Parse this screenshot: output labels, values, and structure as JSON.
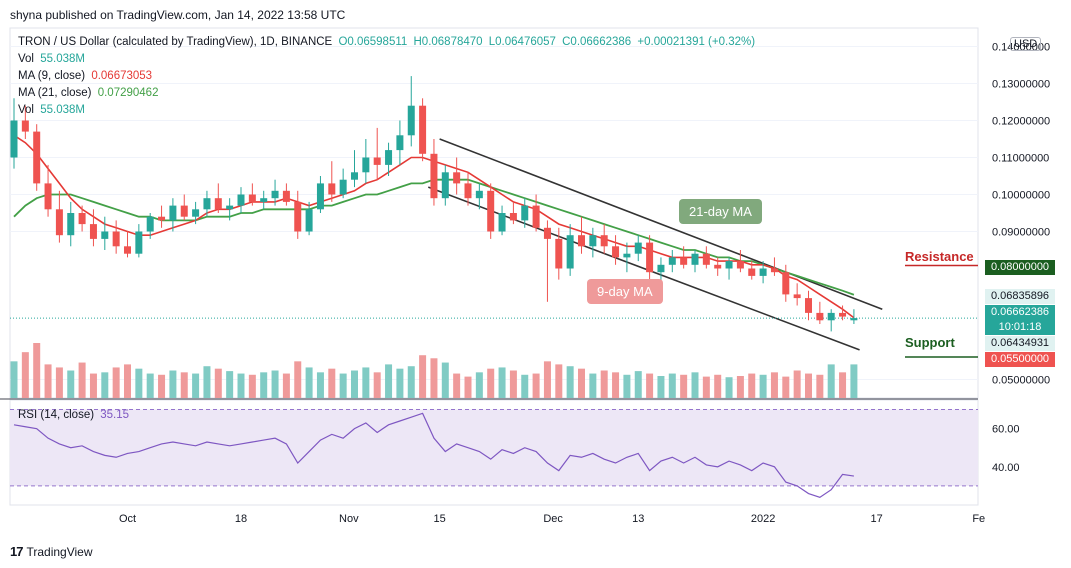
{
  "header": {
    "text": "shyna published on TradingView.com, Jan 14, 2022 13:58 UTC"
  },
  "legend": {
    "title": "TRON / US Dollar (calculated by TradingView), 1D, BINANCE",
    "open": "O0.06598511",
    "high": "H0.06878470",
    "low": "L0.06476057",
    "close": "C0.06662386",
    "change": "+0.00021391 (+0.32%)",
    "vol_label": "Vol",
    "vol_value": "55.038M",
    "ma9_label": "MA (9, close)",
    "ma9_value": "0.06673053",
    "ma21_label": "MA (21, close)",
    "ma21_value": "0.07290462",
    "vol2_label": "Vol",
    "vol2_value": "55.038M",
    "rsi_label": "RSI (14, close)",
    "rsi_value": "35.15"
  },
  "currency_button": "USD",
  "price_axis_ticks": [
    "0.14000000",
    "0.13000000",
    "0.12000000",
    "0.11000000",
    "0.10000000",
    "0.09000000",
    "0.05000000"
  ],
  "rsi_axis_ticks": [
    "60.00",
    "40.00"
  ],
  "price_tags": {
    "resistance": "0.08000000",
    "high_tag": "0.06835896",
    "close_tag": "0.06662386",
    "countdown": "10:01:18",
    "low_tag": "0.06434931",
    "support": "0.05500000"
  },
  "annotations": {
    "resistance_label": "Resistance",
    "support_label": "Support",
    "ma21_bubble": "21-day MA",
    "ma9_bubble": "9-day MA"
  },
  "x_axis_ticks": [
    "Oct",
    "18",
    "Nov",
    "15",
    "Dec",
    "13",
    "2022",
    "17",
    "Fe"
  ],
  "footer": {
    "brand": "TradingView"
  },
  "colors": {
    "up": "#26a69a",
    "down": "#ef5350",
    "ma9": "#e53935",
    "ma21": "#43a047",
    "rsi_line": "#7e57c2",
    "rsi_band": "#ede7f6",
    "resistance": "#c62828",
    "support": "#1b5e20",
    "ma21_bubble": "#81a97d",
    "ma9_bubble": "#ef9a9a"
  },
  "chart_data": {
    "type": "candlestick",
    "series": [
      {
        "name": "TRON / US Dollar",
        "ohlc": [
          [
            0.11,
            0.126,
            0.107,
            0.12
          ],
          [
            0.12,
            0.124,
            0.115,
            0.117
          ],
          [
            0.117,
            0.119,
            0.101,
            0.103
          ],
          [
            0.103,
            0.108,
            0.094,
            0.096
          ],
          [
            0.096,
            0.101,
            0.087,
            0.089
          ],
          [
            0.089,
            0.098,
            0.086,
            0.095
          ],
          [
            0.095,
            0.097,
            0.09,
            0.092
          ],
          [
            0.092,
            0.096,
            0.086,
            0.088
          ],
          [
            0.088,
            0.094,
            0.085,
            0.09
          ],
          [
            0.09,
            0.093,
            0.084,
            0.086
          ],
          [
            0.086,
            0.09,
            0.083,
            0.084
          ],
          [
            0.084,
            0.092,
            0.083,
            0.09
          ],
          [
            0.09,
            0.095,
            0.088,
            0.094
          ],
          [
            0.094,
            0.097,
            0.091,
            0.093
          ],
          [
            0.093,
            0.099,
            0.09,
            0.097
          ],
          [
            0.097,
            0.1,
            0.093,
            0.094
          ],
          [
            0.094,
            0.098,
            0.092,
            0.096
          ],
          [
            0.096,
            0.101,
            0.094,
            0.099
          ],
          [
            0.099,
            0.103,
            0.095,
            0.096
          ],
          [
            0.096,
            0.099,
            0.093,
            0.097
          ],
          [
            0.097,
            0.102,
            0.095,
            0.1
          ],
          [
            0.1,
            0.103,
            0.097,
            0.098
          ],
          [
            0.098,
            0.101,
            0.096,
            0.099
          ],
          [
            0.099,
            0.104,
            0.097,
            0.101
          ],
          [
            0.101,
            0.103,
            0.097,
            0.098
          ],
          [
            0.098,
            0.101,
            0.088,
            0.09
          ],
          [
            0.09,
            0.098,
            0.089,
            0.096
          ],
          [
            0.096,
            0.105,
            0.095,
            0.103
          ],
          [
            0.103,
            0.109,
            0.098,
            0.1
          ],
          [
            0.1,
            0.107,
            0.099,
            0.104
          ],
          [
            0.104,
            0.112,
            0.102,
            0.106
          ],
          [
            0.106,
            0.115,
            0.103,
            0.11
          ],
          [
            0.11,
            0.118,
            0.104,
            0.108
          ],
          [
            0.108,
            0.114,
            0.105,
            0.112
          ],
          [
            0.112,
            0.12,
            0.108,
            0.116
          ],
          [
            0.116,
            0.132,
            0.113,
            0.124
          ],
          [
            0.124,
            0.126,
            0.109,
            0.111
          ],
          [
            0.111,
            0.115,
            0.097,
            0.099
          ],
          [
            0.099,
            0.108,
            0.097,
            0.106
          ],
          [
            0.106,
            0.11,
            0.1,
            0.103
          ],
          [
            0.103,
            0.106,
            0.097,
            0.099
          ],
          [
            0.099,
            0.103,
            0.096,
            0.101
          ],
          [
            0.101,
            0.103,
            0.088,
            0.09
          ],
          [
            0.09,
            0.097,
            0.089,
            0.095
          ],
          [
            0.095,
            0.098,
            0.092,
            0.093
          ],
          [
            0.093,
            0.099,
            0.091,
            0.097
          ],
          [
            0.097,
            0.1,
            0.09,
            0.091
          ],
          [
            0.091,
            0.093,
            0.071,
            0.088
          ],
          [
            0.088,
            0.091,
            0.077,
            0.08
          ],
          [
            0.08,
            0.092,
            0.078,
            0.089
          ],
          [
            0.089,
            0.094,
            0.084,
            0.086
          ],
          [
            0.086,
            0.091,
            0.083,
            0.089
          ],
          [
            0.089,
            0.092,
            0.084,
            0.086
          ],
          [
            0.086,
            0.089,
            0.081,
            0.083
          ],
          [
            0.083,
            0.087,
            0.079,
            0.084
          ],
          [
            0.084,
            0.089,
            0.082,
            0.087
          ],
          [
            0.087,
            0.089,
            0.077,
            0.079
          ],
          [
            0.079,
            0.083,
            0.076,
            0.081
          ],
          [
            0.081,
            0.085,
            0.079,
            0.083
          ],
          [
            0.083,
            0.086,
            0.08,
            0.081
          ],
          [
            0.081,
            0.085,
            0.079,
            0.084
          ],
          [
            0.084,
            0.086,
            0.08,
            0.081
          ],
          [
            0.081,
            0.083,
            0.078,
            0.08
          ],
          [
            0.08,
            0.083,
            0.077,
            0.082
          ],
          [
            0.082,
            0.085,
            0.079,
            0.08
          ],
          [
            0.08,
            0.082,
            0.077,
            0.078
          ],
          [
            0.078,
            0.082,
            0.076,
            0.08
          ],
          [
            0.08,
            0.083,
            0.078,
            0.079
          ],
          [
            0.079,
            0.081,
            0.071,
            0.073
          ],
          [
            0.073,
            0.076,
            0.07,
            0.072
          ],
          [
            0.072,
            0.074,
            0.066,
            0.068
          ],
          [
            0.068,
            0.071,
            0.065,
            0.066
          ],
          [
            0.066,
            0.069,
            0.063,
            0.068
          ],
          [
            0.068,
            0.07,
            0.066,
            0.067
          ],
          [
            0.066,
            0.069,
            0.065,
            0.0666
          ]
        ]
      }
    ],
    "ma9": [
      0.116,
      0.114,
      0.111,
      0.107,
      0.103,
      0.099,
      0.096,
      0.094,
      0.092,
      0.091,
      0.09,
      0.089,
      0.089,
      0.09,
      0.091,
      0.092,
      0.093,
      0.095,
      0.096,
      0.096,
      0.097,
      0.098,
      0.098,
      0.098,
      0.099,
      0.098,
      0.097,
      0.098,
      0.099,
      0.1,
      0.101,
      0.103,
      0.104,
      0.106,
      0.108,
      0.11,
      0.11,
      0.109,
      0.108,
      0.107,
      0.106,
      0.104,
      0.102,
      0.1,
      0.098,
      0.097,
      0.096,
      0.094,
      0.092,
      0.091,
      0.09,
      0.089,
      0.088,
      0.087,
      0.086,
      0.086,
      0.085,
      0.084,
      0.083,
      0.083,
      0.083,
      0.083,
      0.082,
      0.082,
      0.082,
      0.081,
      0.081,
      0.08,
      0.078,
      0.077,
      0.075,
      0.073,
      0.071,
      0.069,
      0.0667
    ],
    "ma21": [
      0.094,
      0.097,
      0.099,
      0.1,
      0.1,
      0.1,
      0.099,
      0.098,
      0.097,
      0.096,
      0.095,
      0.094,
      0.094,
      0.093,
      0.093,
      0.093,
      0.093,
      0.094,
      0.094,
      0.094,
      0.095,
      0.095,
      0.096,
      0.096,
      0.096,
      0.096,
      0.096,
      0.097,
      0.097,
      0.098,
      0.099,
      0.1,
      0.1,
      0.101,
      0.102,
      0.103,
      0.103,
      0.104,
      0.104,
      0.104,
      0.104,
      0.103,
      0.102,
      0.101,
      0.1,
      0.099,
      0.098,
      0.097,
      0.096,
      0.095,
      0.094,
      0.093,
      0.092,
      0.091,
      0.09,
      0.089,
      0.088,
      0.087,
      0.086,
      0.085,
      0.085,
      0.084,
      0.083,
      0.083,
      0.082,
      0.082,
      0.081,
      0.08,
      0.079,
      0.078,
      0.077,
      0.076,
      0.075,
      0.074,
      0.0729
    ],
    "volume_m": [
      60,
      75,
      90,
      55,
      50,
      45,
      58,
      40,
      42,
      50,
      55,
      48,
      40,
      38,
      45,
      42,
      40,
      52,
      48,
      44,
      40,
      38,
      42,
      45,
      40,
      60,
      50,
      42,
      48,
      40,
      45,
      50,
      42,
      55,
      48,
      52,
      70,
      65,
      58,
      40,
      35,
      42,
      48,
      50,
      45,
      38,
      40,
      60,
      55,
      52,
      48,
      40,
      45,
      42,
      38,
      44,
      40,
      36,
      40,
      38,
      42,
      35,
      38,
      34,
      36,
      40,
      38,
      42,
      35,
      45,
      40,
      38,
      55,
      42,
      55
    ],
    "rsi": [
      62,
      61,
      60,
      55,
      52,
      50,
      51,
      48,
      46,
      45,
      47,
      48,
      50,
      52,
      53,
      52,
      51,
      53,
      52,
      51,
      52,
      53,
      54,
      55,
      52,
      42,
      48,
      54,
      57,
      55,
      60,
      63,
      58,
      62,
      64,
      66,
      68,
      55,
      48,
      52,
      50,
      48,
      44,
      49,
      47,
      50,
      48,
      42,
      38,
      46,
      45,
      47,
      44,
      42,
      45,
      47,
      38,
      43,
      45,
      42,
      45,
      41,
      40,
      43,
      41,
      38,
      42,
      40,
      32,
      30,
      26,
      24,
      28,
      36,
      35.15
    ],
    "rsi_ylim": [
      20,
      75
    ],
    "price_ylim": [
      0.045,
      0.145
    ],
    "x_tick_labels": [
      "Oct",
      "18",
      "Nov",
      "15",
      "Dec",
      "13",
      "2022",
      "17",
      "Fe"
    ]
  }
}
